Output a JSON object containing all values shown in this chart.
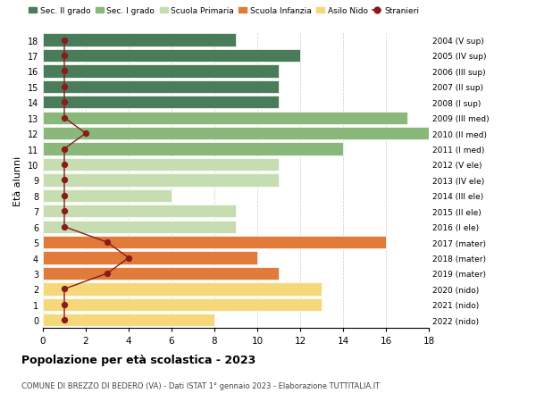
{
  "ages": [
    18,
    17,
    16,
    15,
    14,
    13,
    12,
    11,
    10,
    9,
    8,
    7,
    6,
    5,
    4,
    3,
    2,
    1,
    0
  ],
  "right_labels": [
    "2004 (V sup)",
    "2005 (IV sup)",
    "2006 (III sup)",
    "2007 (II sup)",
    "2008 (I sup)",
    "2009 (III med)",
    "2010 (II med)",
    "2011 (I med)",
    "2012 (V ele)",
    "2013 (IV ele)",
    "2014 (III ele)",
    "2015 (II ele)",
    "2016 (I ele)",
    "2017 (mater)",
    "2018 (mater)",
    "2019 (mater)",
    "2020 (nido)",
    "2021 (nido)",
    "2022 (nido)"
  ],
  "bar_values": [
    9,
    12,
    11,
    11,
    11,
    17,
    18,
    14,
    11,
    11,
    6,
    9,
    9,
    16,
    10,
    11,
    13,
    13,
    8
  ],
  "bar_colors": [
    "#4a7c59",
    "#4a7c59",
    "#4a7c59",
    "#4a7c59",
    "#4a7c59",
    "#8ab87a",
    "#8ab87a",
    "#8ab87a",
    "#c5ddb0",
    "#c5ddb0",
    "#c5ddb0",
    "#c5ddb0",
    "#c5ddb0",
    "#e07b39",
    "#e07b39",
    "#e07b39",
    "#f5d87a",
    "#f5d87a",
    "#f5d87a"
  ],
  "stranieri_values": [
    1,
    1,
    1,
    1,
    1,
    1,
    2,
    1,
    1,
    1,
    1,
    1,
    1,
    3,
    4,
    3,
    1,
    1,
    1
  ],
  "stranieri_color": "#8b1a1a",
  "legend_labels": [
    "Sec. II grado",
    "Sec. I grado",
    "Scuola Primaria",
    "Scuola Infanzia",
    "Asilo Nido",
    "Stranieri"
  ],
  "legend_colors": [
    "#4a7c59",
    "#8ab87a",
    "#c5ddb0",
    "#e07b39",
    "#f5d87a",
    "#8b1a1a"
  ],
  "ylabel_left": "Età alunni",
  "title": "Popolazione per età scolastica - 2023",
  "subtitle": "COMUNE DI BREZZO DI BEDERO (VA) - Dati ISTAT 1° gennaio 2023 - Elaborazione TUTTITALIA.IT",
  "xlim": [
    0,
    18
  ],
  "bg_color": "#ffffff",
  "grid_color": "#cccccc"
}
